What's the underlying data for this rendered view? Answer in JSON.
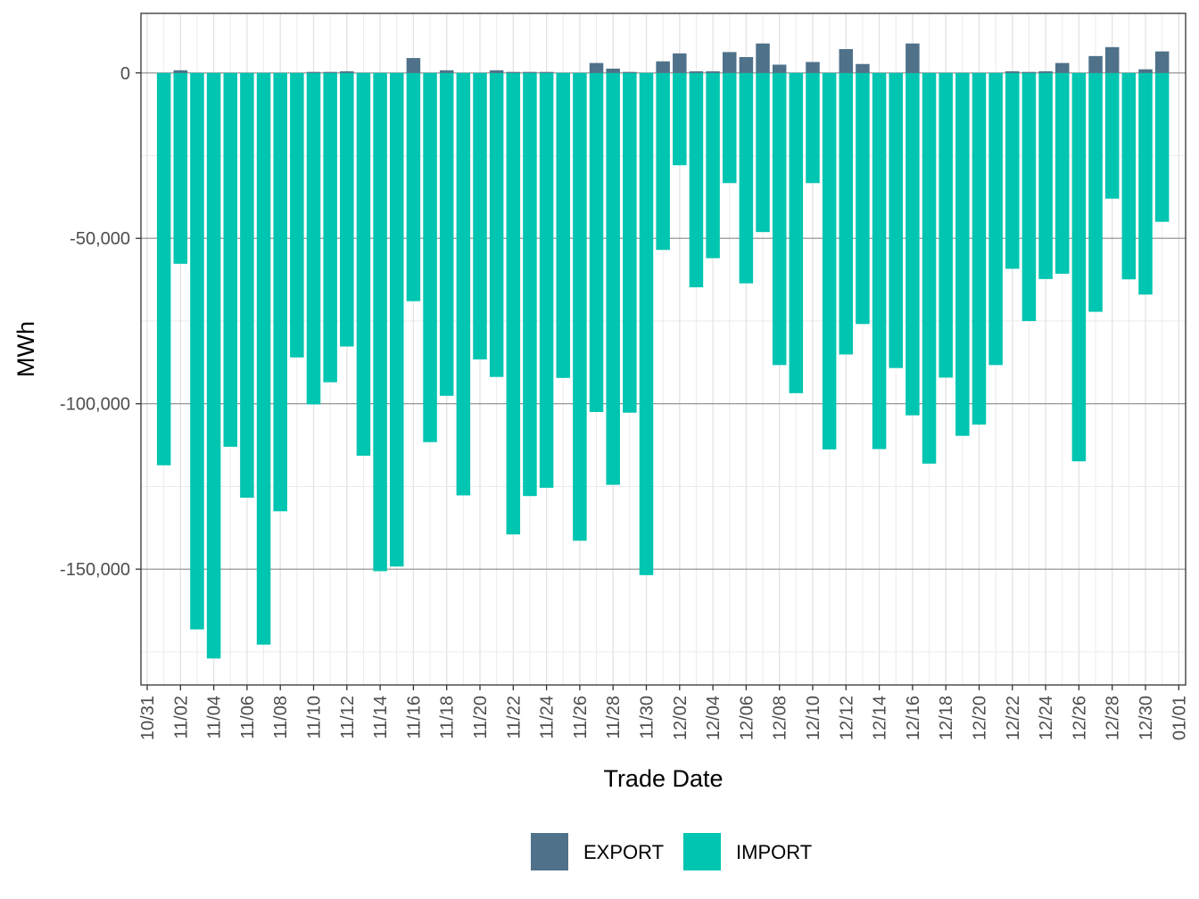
{
  "chart_data": {
    "type": "bar",
    "title": "",
    "xlabel": "Trade Date",
    "ylabel": "MWh",
    "ylim": [
      -185000,
      18000
    ],
    "y_ticks": [
      {
        "value": 0,
        "label": "0"
      },
      {
        "value": -50000,
        "label": "-50,000"
      },
      {
        "value": -100000,
        "label": "-100,000"
      },
      {
        "value": -150000,
        "label": "-150,000"
      }
    ],
    "x_tick_labels": [
      "10/31",
      "11/02",
      "11/04",
      "11/06",
      "11/08",
      "11/10",
      "11/12",
      "11/14",
      "11/16",
      "11/18",
      "11/20",
      "11/22",
      "11/24",
      "11/26",
      "11/28",
      "11/30",
      "12/02",
      "12/04",
      "12/06",
      "12/08",
      "12/10",
      "12/12",
      "12/14",
      "12/16",
      "12/18",
      "12/20",
      "12/22",
      "12/24",
      "12/26",
      "12/28",
      "12/30",
      "01/01"
    ],
    "dates": [
      "11/01",
      "11/02",
      "11/03",
      "11/04",
      "11/05",
      "11/06",
      "11/07",
      "11/08",
      "11/09",
      "11/10",
      "11/11",
      "11/12",
      "11/13",
      "11/14",
      "11/15",
      "11/16",
      "11/17",
      "11/18",
      "11/19",
      "11/20",
      "11/21",
      "11/22",
      "11/23",
      "11/24",
      "11/25",
      "11/26",
      "11/27",
      "11/28",
      "11/29",
      "11/30",
      "12/01",
      "12/02",
      "12/03",
      "12/04",
      "12/05",
      "12/06",
      "12/07",
      "12/08",
      "12/09",
      "12/10",
      "12/11",
      "12/12",
      "12/13",
      "12/14",
      "12/15",
      "12/16",
      "12/17",
      "12/18",
      "12/19",
      "12/20",
      "12/21",
      "12/22",
      "12/23",
      "12/24",
      "12/25",
      "12/26",
      "12/27",
      "12/28",
      "12/29",
      "12/30",
      "12/31"
    ],
    "series": [
      {
        "name": "EXPORT",
        "color": "#4f7189",
        "values": [
          0,
          800,
          0,
          0,
          0,
          0,
          0,
          0,
          0,
          300,
          300,
          500,
          0,
          0,
          0,
          4500,
          0,
          800,
          0,
          0,
          800,
          300,
          300,
          300,
          0,
          0,
          3000,
          1300,
          300,
          0,
          3500,
          5900,
          500,
          500,
          6300,
          4800,
          8900,
          2500,
          0,
          3300,
          0,
          7200,
          2700,
          0,
          0,
          8900,
          0,
          0,
          0,
          0,
          0,
          500,
          300,
          500,
          3000,
          0,
          5100,
          7800,
          0,
          1100,
          6500
        ]
      },
      {
        "name": "IMPORT",
        "color": "#00c5b0",
        "values": [
          -118600,
          -57700,
          -168200,
          -177000,
          -113000,
          -128400,
          -172800,
          -132500,
          -86000,
          -100200,
          -93500,
          -82700,
          -115700,
          -150600,
          -149200,
          -69000,
          -111600,
          -97600,
          -127700,
          -86600,
          -91900,
          -139500,
          -127900,
          -125400,
          -92200,
          -141400,
          -102500,
          -124500,
          -102700,
          -151800,
          -53500,
          -27900,
          -64800,
          -56000,
          -33300,
          -63600,
          -48100,
          -88300,
          -96800,
          -33300,
          -113800,
          -85100,
          -75900,
          -113700,
          -89200,
          -103500,
          -118100,
          -92100,
          -109700,
          -106300,
          -88300,
          -59200,
          -75000,
          -62300,
          -60700,
          -117400,
          -72200,
          -38000,
          -62400,
          -67000,
          -45000
        ]
      }
    ],
    "grid": true,
    "legend_position": "bottom"
  },
  "legend": {
    "items": [
      {
        "label": "EXPORT",
        "color": "#4f7189"
      },
      {
        "label": "IMPORT",
        "color": "#00c5b0"
      }
    ]
  }
}
